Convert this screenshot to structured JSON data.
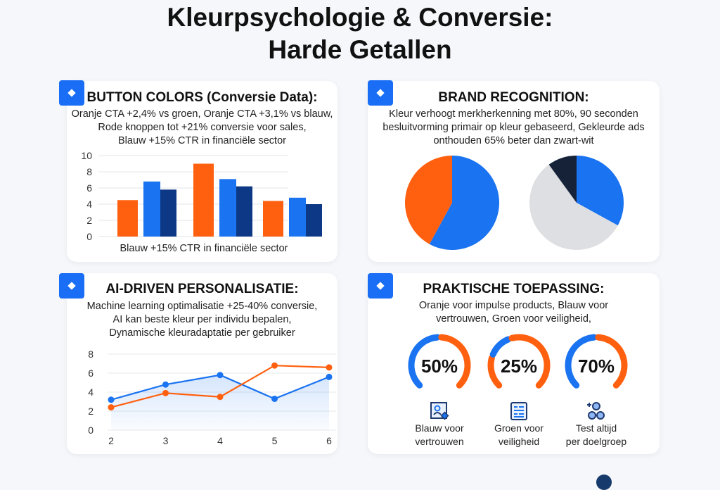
{
  "title": {
    "line1": "Kleurpsychologie & Conversie:",
    "line2": "Harde Getallen"
  },
  "colors": {
    "orange": "#ff600f",
    "blue": "#1a73f0",
    "navy": "#0d3885",
    "dark": "#152238",
    "gray": "#dedfe2"
  },
  "cards": {
    "button_colors": {
      "title": "BUTTON COLORS (Conversie Data):",
      "desc": [
        "Oranje CTA +2,4% vs groen, Oranje CTA +3,1% vs blauw,",
        "Rode knoppen tot +21% conversie voor sales,",
        "Blauw +15% CTR in financiële sector"
      ],
      "icon": "diamond-icon"
    },
    "brand": {
      "title": "BRAND RECOGNITION:",
      "desc": [
        "Kleur verhoogt merkherkenning met 80%, 90 seconden",
        "besluitvorming primair op kleur gebaseerd, Gekleurde ads",
        "onthouden 65% beter dan zwart-wit"
      ],
      "icon": "diamond-icon"
    },
    "ai": {
      "title": "AI-DRIVEN PERSONALISATIE:",
      "desc": [
        "Machine learning optimalisatie +25-40% conversie,",
        "AI kan beste kleur per individu bepalen,",
        "Dynamische kleuradaptatie per gebruiker"
      ],
      "icon": "diamond-icon"
    },
    "praktisch": {
      "title": "PRAKTISCHE TOEPASSING:",
      "desc": [
        "Oranje voor impulse products, Blauw voor",
        "vertrouwen, Groen voor veiligheid,"
      ],
      "icon": "diamond-icon",
      "items": [
        {
          "label": [
            "Blauw voor",
            "vertrouwen"
          ],
          "icon": "profile-badge-icon"
        },
        {
          "label": [
            "Groen voor",
            "veiligheid"
          ],
          "icon": "document-list-icon"
        },
        {
          "label": [
            "Test altijd",
            "per doelgroep"
          ],
          "icon": "users-group-icon"
        }
      ]
    }
  },
  "chart_data": [
    {
      "type": "bar",
      "xlabel": "Blauw +15% CTR in financiële sector",
      "ylim": [
        0,
        10
      ],
      "yticks": [
        0,
        2,
        4,
        6,
        8,
        10
      ],
      "grid": true,
      "categories": [
        "",
        "",
        ""
      ],
      "series": [
        {
          "values": [
            4.5,
            9.0,
            4.4
          ],
          "color": "#ff600f"
        },
        {
          "values": [
            6.8,
            7.1,
            4.8
          ],
          "color": "#1a73f0"
        },
        {
          "values": [
            5.8,
            6.2,
            4.0
          ],
          "color": "#0d3885"
        }
      ]
    },
    {
      "type": "pie",
      "slices": [
        {
          "value": 58,
          "color": "#1a73f0"
        },
        {
          "value": 42,
          "color": "#ff600f"
        }
      ]
    },
    {
      "type": "pie",
      "slices": [
        {
          "value": 33,
          "color": "#1a73f0"
        },
        {
          "value": 57,
          "color": "#dedfe2"
        },
        {
          "value": 10,
          "color": "#152238"
        }
      ]
    },
    {
      "type": "line",
      "x": [
        2,
        3,
        4,
        5,
        6
      ],
      "ylim": [
        0,
        8
      ],
      "yticks": [
        0,
        2,
        4,
        6,
        8
      ],
      "grid": true,
      "series": [
        {
          "values": [
            3.2,
            4.8,
            5.8,
            3.3,
            5.6
          ],
          "color": "#1a73f0",
          "area": true
        },
        {
          "values": [
            2.4,
            3.9,
            3.5,
            6.8,
            6.6
          ],
          "color": "#ff600f"
        }
      ]
    },
    {
      "type": "gauge",
      "values": [
        50,
        25,
        70
      ],
      "labels": [
        "50%",
        "25%",
        "70%"
      ]
    }
  ]
}
